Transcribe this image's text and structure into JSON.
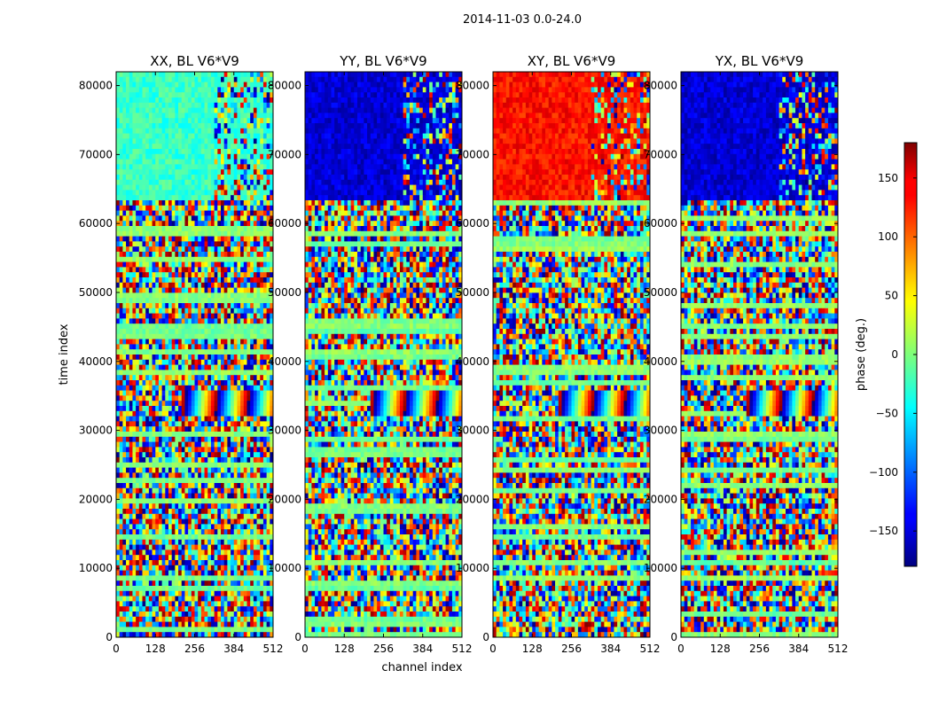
{
  "chart_data": {
    "type": "heatmap",
    "suptitle": "2014-11-03 0.0-24.0",
    "xlabel": "channel index",
    "ylabel": "time index",
    "xlim": [
      0,
      512
    ],
    "ylim": [
      0,
      82000
    ],
    "xticks": [
      0,
      128,
      256,
      384,
      512
    ],
    "yticks": [
      0,
      10000,
      20000,
      30000,
      40000,
      50000,
      60000,
      70000,
      80000
    ],
    "panels": [
      {
        "title": "XX, BL V6*V9",
        "dominant_upper_phase": -25
      },
      {
        "title": "YY, BL V6*V9",
        "dominant_upper_phase": -150
      },
      {
        "title": "XY, BL V6*V9",
        "dominant_upper_phase": 130
      },
      {
        "title": "YX, BL V6*V9",
        "dominant_upper_phase": -150
      }
    ],
    "colorbar": {
      "label": "phase (deg.)",
      "range": [
        -180,
        180
      ],
      "ticks": [
        -150,
        -100,
        -50,
        0,
        50,
        100,
        150
      ],
      "tick_labels": [
        "−150",
        "−100",
        "−50",
        "0",
        "50",
        "100",
        "150"
      ],
      "colormap": "jet"
    },
    "regions": [
      {
        "name": "coherent upper band",
        "time_range": [
          63000,
          82000
        ]
      },
      {
        "name": "fringe band",
        "time_range": [
          32000,
          36000
        ]
      }
    ]
  }
}
